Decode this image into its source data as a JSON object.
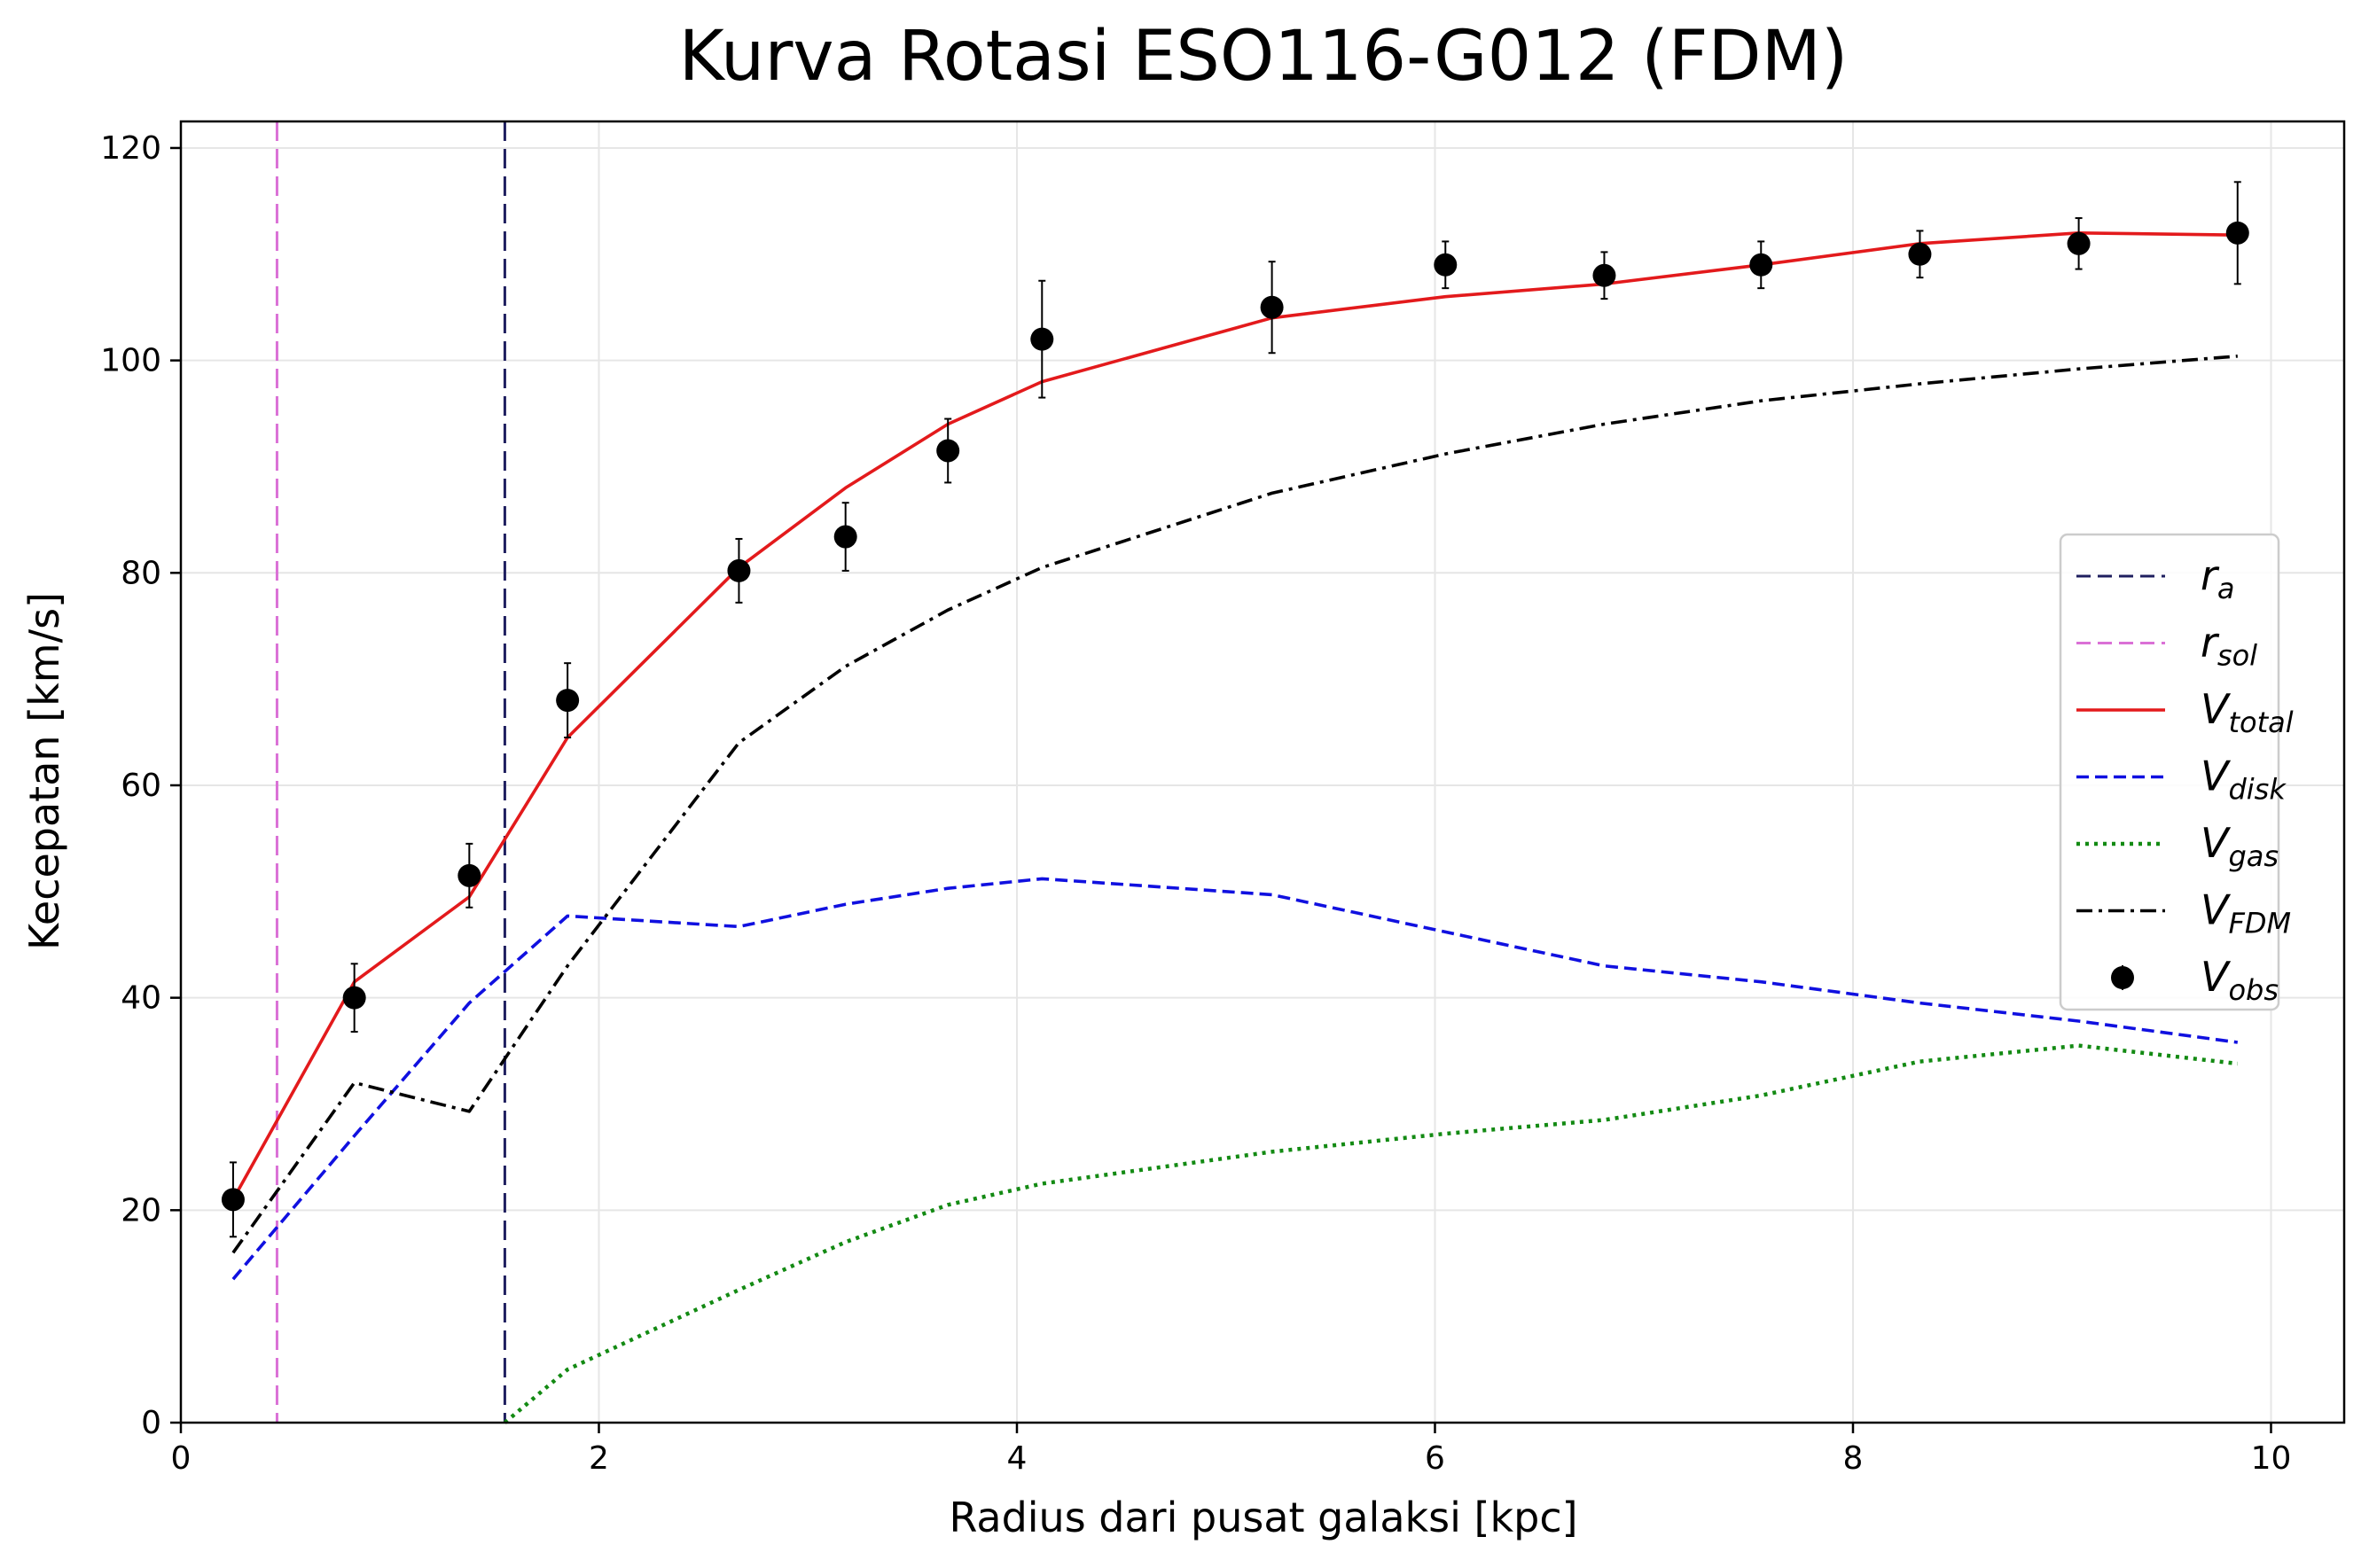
{
  "chart_data": {
    "type": "line",
    "title": "Kurva Rotasi ESO116-G012 (FDM)",
    "xlabel": "Radius dari pusat galaksi [kpc]",
    "ylabel": "Kecepatan [km/s]",
    "xlim": [
      0,
      10.35
    ],
    "ylim": [
      0,
      122.5
    ],
    "xticks": [
      0,
      2,
      4,
      6,
      8,
      10
    ],
    "yticks": [
      0,
      20,
      40,
      60,
      80,
      100,
      120
    ],
    "xtick_labels": [
      "0",
      "2",
      "4",
      "6",
      "8",
      "10"
    ],
    "ytick_labels": [
      "0",
      "20",
      "40",
      "60",
      "80",
      "100",
      "120"
    ],
    "grid": true,
    "legend_position": "center-right",
    "colors": {
      "r_a": "#1f1f5f",
      "r_sol": "#da70d6",
      "V_total": "#e31a1c",
      "V_disk": "#1010e0",
      "V_gas": "#138a13",
      "V_FDM": "#000000",
      "V_obs": "#000000"
    },
    "vlines": [
      {
        "id": "r_a",
        "symbol": "r",
        "subscript": "a",
        "x": 1.55
      },
      {
        "id": "r_sol",
        "symbol": "r",
        "subscript": "sol",
        "x": 0.46
      }
    ],
    "series": [
      {
        "id": "V_total",
        "symbol": "V",
        "subscript": "total",
        "style": "solid",
        "x": [
          0.25,
          0.83,
          1.38,
          1.85,
          2.67,
          3.18,
          3.67,
          4.12,
          5.22,
          6.05,
          6.81,
          7.56,
          8.32,
          9.08,
          9.84
        ],
        "y": [
          21,
          41.5,
          49.5,
          64.5,
          80.5,
          88,
          94,
          98,
          104,
          106,
          107.2,
          109,
          111,
          112,
          111.8
        ]
      },
      {
        "id": "V_disk",
        "symbol": "V",
        "subscript": "disk",
        "style": "dashed",
        "x": [
          0.25,
          0.83,
          1.38,
          1.85,
          2.67,
          3.18,
          3.67,
          4.12,
          5.22,
          6.05,
          6.81,
          7.56,
          8.32,
          9.08,
          9.84
        ],
        "y": [
          13.5,
          27,
          39.5,
          47.7,
          46.7,
          48.8,
          50.3,
          51.2,
          49.7,
          46.2,
          43,
          41.5,
          39.5,
          37.8,
          35.8
        ]
      },
      {
        "id": "V_gas",
        "symbol": "V",
        "subscript": "gas",
        "style": "dotted",
        "x": [
          1.55,
          1.85,
          2.67,
          3.18,
          3.67,
          4.12,
          5.22,
          6.05,
          6.81,
          7.56,
          8.32,
          9.08,
          9.84
        ],
        "y": [
          0,
          5,
          12.5,
          17,
          20.5,
          22.5,
          25.5,
          27.2,
          28.5,
          30.8,
          34,
          35.5,
          33.8
        ]
      },
      {
        "id": "V_FDM",
        "symbol": "V",
        "subscript": "FDM",
        "style": "dashdot",
        "x": [
          0.25,
          0.83,
          1.38,
          1.85,
          2.67,
          3.18,
          3.67,
          4.12,
          5.22,
          6.05,
          6.81,
          7.56,
          8.32,
          9.08,
          9.84
        ],
        "y": [
          16,
          32,
          29.3,
          43,
          64,
          71.2,
          76.5,
          80.5,
          87.5,
          91.2,
          94,
          96.2,
          97.8,
          99.2,
          100.4
        ]
      }
    ],
    "observations": {
      "id": "V_obs",
      "symbol": "V",
      "subscript": "obs",
      "x": [
        0.25,
        0.83,
        1.38,
        1.85,
        2.67,
        3.18,
        3.67,
        4.12,
        5.22,
        6.05,
        6.81,
        7.56,
        8.32,
        9.08,
        9.84
      ],
      "y": [
        21,
        40,
        51.5,
        68,
        80.2,
        83.4,
        91.5,
        102,
        105,
        109,
        108,
        109,
        110,
        111,
        112
      ],
      "err": [
        3.5,
        3.2,
        3,
        3.5,
        3,
        3.2,
        3,
        5.5,
        4.3,
        2.2,
        2.2,
        2.2,
        2.2,
        2.4,
        4.8
      ]
    },
    "legend_order": [
      "r_a",
      "r_sol",
      "V_total",
      "V_disk",
      "V_gas",
      "V_FDM",
      "V_obs"
    ]
  }
}
